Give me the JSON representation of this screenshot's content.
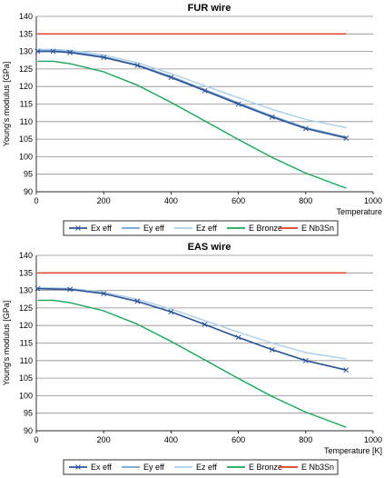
{
  "chart_data": [
    {
      "type": "line",
      "title": "FUR wire",
      "xlabel": "Temperature",
      "ylabel": "Young's modulus [GPa]",
      "xlim": [
        0,
        1000
      ],
      "ylim": [
        90,
        140
      ],
      "xticks": [
        0,
        200,
        400,
        600,
        800,
        1000
      ],
      "yticks": [
        90,
        95,
        100,
        105,
        110,
        115,
        120,
        125,
        130,
        135,
        140
      ],
      "grid": "horizontal",
      "legend_position": "bottom",
      "series": [
        {
          "name": "Ex eff",
          "color": "#2f5496",
          "marker": "x",
          "x": [
            4,
            50,
            100,
            200,
            300,
            400,
            500,
            600,
            700,
            800,
            920
          ],
          "y": [
            130.0,
            130.0,
            129.7,
            128.3,
            126.0,
            122.6,
            118.8,
            115.0,
            111.3,
            108.0,
            105.3
          ]
        },
        {
          "name": "Ey eff",
          "color": "#6f9fd0",
          "marker": "none",
          "x": [
            4,
            50,
            100,
            200,
            300,
            400,
            500,
            600,
            700,
            800,
            920
          ],
          "y": [
            130.2,
            130.2,
            129.9,
            128.5,
            126.2,
            122.9,
            119.1,
            115.3,
            111.6,
            108.3,
            105.6
          ]
        },
        {
          "name": "Ez eff",
          "color": "#a9cdea",
          "marker": "none",
          "x": [
            4,
            50,
            100,
            200,
            300,
            400,
            500,
            600,
            700,
            800,
            920
          ],
          "y": [
            130.6,
            130.6,
            130.3,
            129.0,
            126.8,
            123.7,
            120.2,
            116.8,
            113.5,
            110.6,
            108.3
          ]
        },
        {
          "name": "E Bronze",
          "color": "#1aa35a",
          "marker": "none",
          "x": [
            4,
            50,
            100,
            200,
            300,
            400,
            500,
            600,
            700,
            800,
            920
          ],
          "y": [
            127.2,
            127.2,
            126.5,
            124.2,
            120.4,
            115.5,
            110.2,
            104.9,
            99.8,
            95.3,
            91.0
          ]
        },
        {
          "name": "E Nb3Sn",
          "color": "#e03a1e",
          "marker": "none",
          "x": [
            4,
            920
          ],
          "y": [
            135.0,
            135.0
          ]
        }
      ]
    },
    {
      "type": "line",
      "title": "EAS wire",
      "xlabel": "Temperature [K]",
      "ylabel": "Young's modulus [GPa]",
      "xlim": [
        0,
        1000
      ],
      "ylim": [
        90,
        140
      ],
      "xticks": [
        0,
        200,
        400,
        600,
        800,
        1000
      ],
      "yticks": [
        90,
        95,
        100,
        105,
        110,
        115,
        120,
        125,
        130,
        135,
        140
      ],
      "grid": "horizontal",
      "legend_position": "bottom",
      "series": [
        {
          "name": "Ex eff",
          "color": "#2f5496",
          "marker": "x",
          "x": [
            4,
            100,
            200,
            300,
            400,
            500,
            600,
            700,
            800,
            920
          ],
          "y": [
            130.5,
            130.3,
            129.1,
            126.9,
            123.9,
            120.3,
            116.6,
            113.1,
            110.0,
            107.3
          ]
        },
        {
          "name": "Ey eff",
          "color": "#6f9fd0",
          "marker": "none",
          "x": [
            4,
            100,
            200,
            300,
            400,
            500,
            600,
            700,
            800,
            920
          ],
          "y": [
            130.5,
            130.3,
            129.1,
            126.9,
            123.9,
            120.3,
            116.6,
            113.1,
            110.0,
            107.3
          ]
        },
        {
          "name": "Ez eff",
          "color": "#a9cdea",
          "marker": "none",
          "x": [
            4,
            100,
            200,
            300,
            400,
            500,
            600,
            700,
            800,
            920
          ],
          "y": [
            130.8,
            130.6,
            129.5,
            127.5,
            124.7,
            121.4,
            118.1,
            115.0,
            112.3,
            110.5
          ]
        },
        {
          "name": "E Bronze",
          "color": "#1aa35a",
          "marker": "none",
          "x": [
            4,
            50,
            100,
            200,
            300,
            400,
            500,
            600,
            700,
            800,
            920
          ],
          "y": [
            127.2,
            127.2,
            126.5,
            124.2,
            120.4,
            115.5,
            110.2,
            104.9,
            99.8,
            95.3,
            91.0
          ]
        },
        {
          "name": "E Nb3Sn",
          "color": "#e03a1e",
          "marker": "none",
          "x": [
            4,
            920
          ],
          "y": [
            135.0,
            135.0
          ]
        }
      ]
    }
  ]
}
